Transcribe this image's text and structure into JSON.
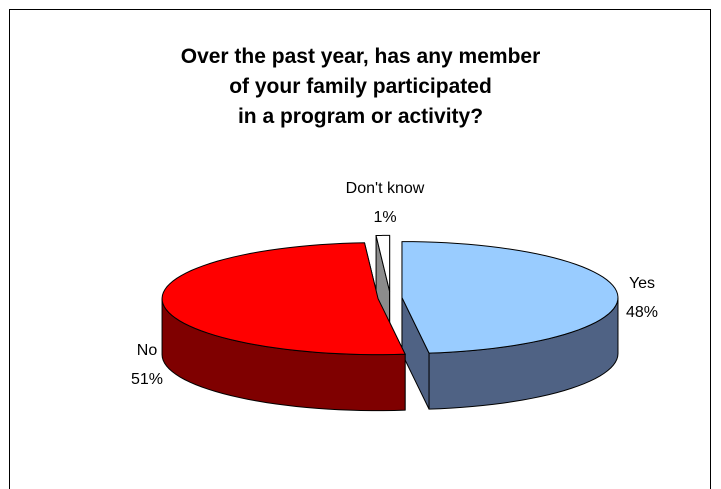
{
  "chart_data": {
    "type": "pie",
    "title_lines": [
      "Over the past year, has any member",
      "of your family participated",
      "in a program or activity?"
    ],
    "slices": [
      {
        "label": "Yes",
        "value": 48,
        "value_label": "48%",
        "top_color": "#99CCFF",
        "side_color": "#4F6284"
      },
      {
        "label": "No",
        "value": 51,
        "value_label": "51%",
        "top_color": "#FF0000",
        "side_color": "#7F0000"
      },
      {
        "label": "Don't know",
        "value": 1,
        "value_label": "1%",
        "top_color": "#FFFFFF",
        "side_color": "#8C8C8C"
      }
    ],
    "style": "3d-exploded"
  }
}
